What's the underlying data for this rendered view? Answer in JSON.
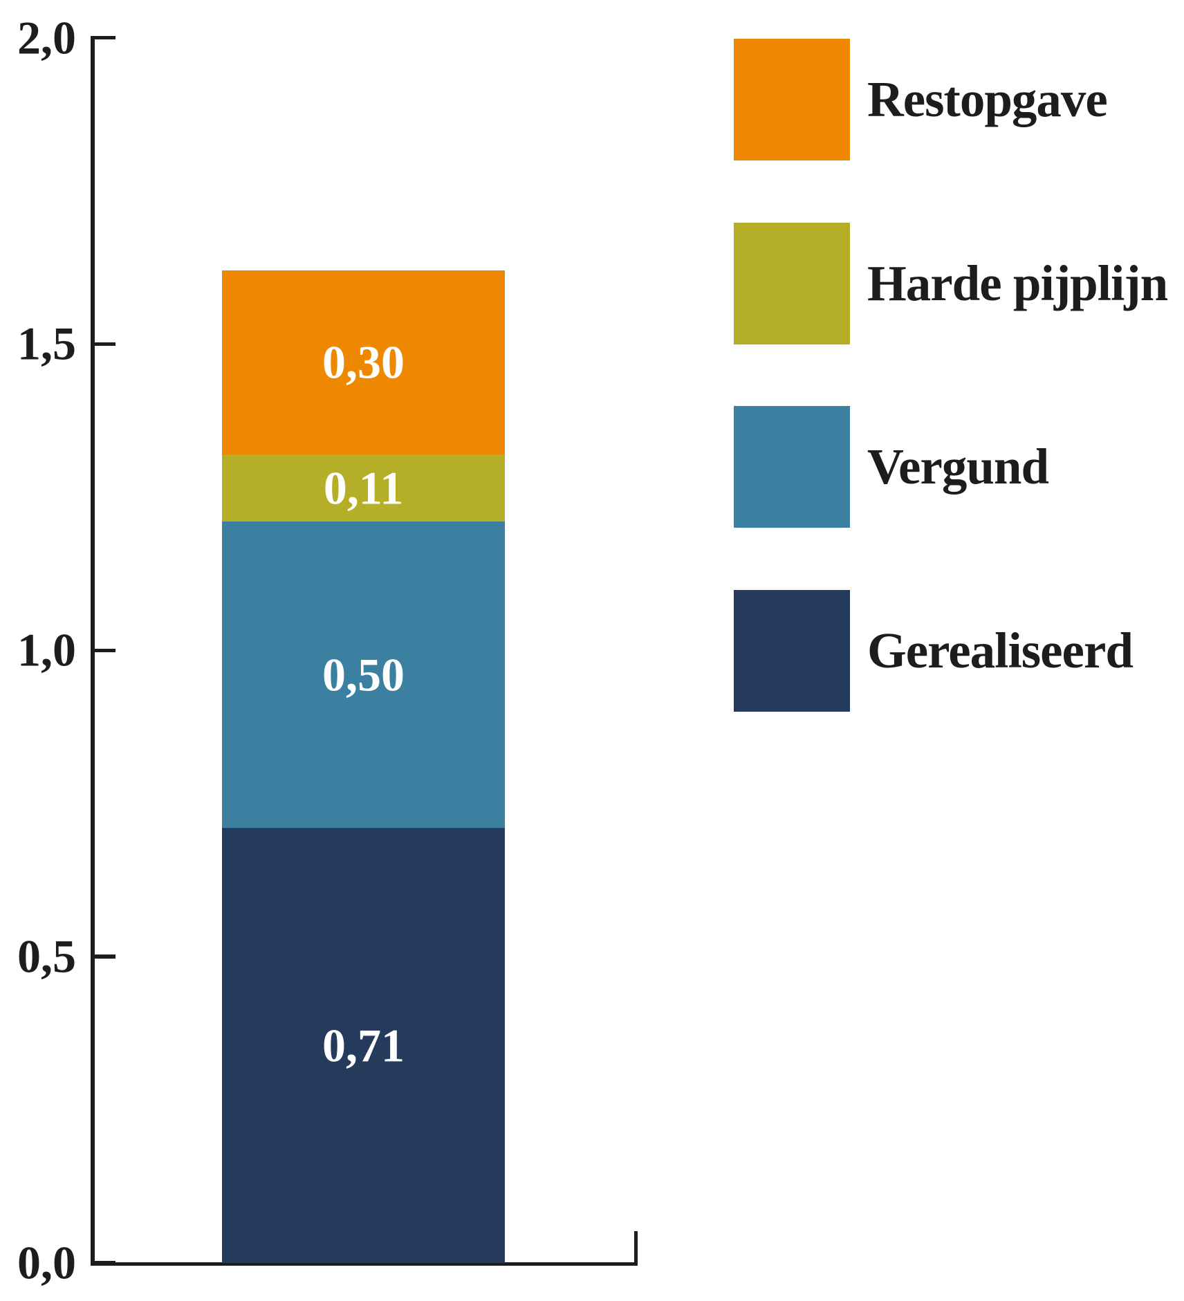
{
  "chart_data": {
    "type": "bar",
    "stacked": true,
    "title": "",
    "categories": [
      ""
    ],
    "series": [
      {
        "name": "Gerealiseerd",
        "values": [
          0.71
        ],
        "label": "0,71",
        "color": "#243B5C"
      },
      {
        "name": "Vergund",
        "values": [
          0.5
        ],
        "label": "0,50",
        "color": "#3B80A0"
      },
      {
        "name": "Harde pijplijn",
        "values": [
          0.11
        ],
        "label": "0,11",
        "color": "#B4AF26"
      },
      {
        "name": "Restopgave",
        "values": [
          0.3
        ],
        "label": "0,30",
        "color": "#EE8800"
      }
    ],
    "xlabel": "",
    "ylabel": "",
    "ylim": [
      0,
      2
    ],
    "ytick_labels": [
      "0,0",
      "0,5",
      "1,0",
      "1,5",
      "2,0"
    ],
    "ytick_values": [
      0,
      0.5,
      1,
      1.5,
      2
    ],
    "grid": false,
    "legend_position": "right",
    "legend_order": [
      "Restopgave",
      "Harde pijplijn",
      "Vergund",
      "Gerealiseerd"
    ]
  },
  "colors": {
    "axis": "#1D1D1B",
    "background": "#FFFFFF",
    "value_label_text": "#FFFFFF"
  }
}
